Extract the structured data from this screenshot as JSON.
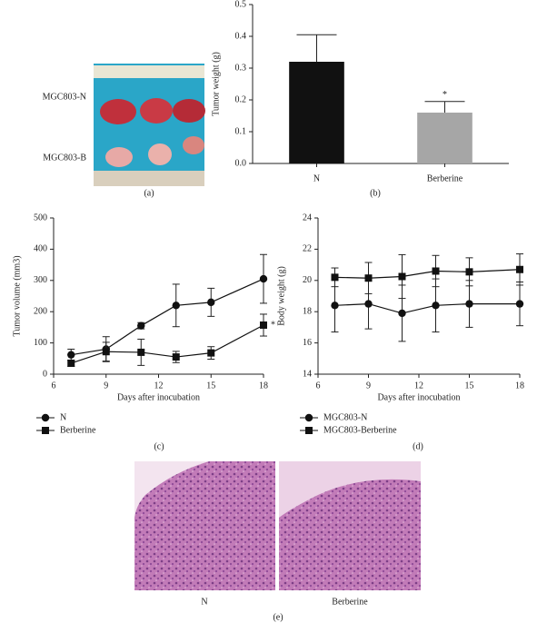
{
  "photo": {
    "labels": [
      "MGC803-N",
      "MGC803-B"
    ],
    "caption": "(a)"
  },
  "chart_data": [
    {
      "type": "bar",
      "caption": "(b)",
      "ylabel": "Tumor weight (g)",
      "categories": [
        "N",
        "Berberine"
      ],
      "values": [
        0.32,
        0.16
      ],
      "errors": [
        0.085,
        0.035
      ],
      "colors": [
        "#111111",
        "#a6a6a6"
      ],
      "ylim": [
        0,
        0.5
      ],
      "yticks": [
        {
          "value": 0,
          "label": "0.0"
        },
        0.1,
        0.2,
        0.3,
        0.4,
        0.5
      ],
      "annotation": "*"
    },
    {
      "type": "line",
      "caption": "(c)",
      "xlabel": "Days after inocubation",
      "ylabel": "Tumor volume (mm3)",
      "x": [
        7,
        9,
        11,
        13,
        15,
        18
      ],
      "series": [
        {
          "name": "N",
          "color": "#111111",
          "marker": "circle",
          "values": [
            62,
            80,
            155,
            220,
            230,
            305
          ],
          "errors": [
            18,
            40,
            10,
            68,
            45,
            78
          ]
        },
        {
          "name": "Berberine",
          "color": "#111111",
          "marker": "square",
          "values": [
            35,
            72,
            70,
            55,
            68,
            157
          ],
          "errors": [
            10,
            30,
            42,
            18,
            20,
            35
          ]
        }
      ],
      "xlim": [
        6,
        18
      ],
      "xticks": [
        6,
        9,
        12,
        15,
        18
      ],
      "ylim": [
        0,
        500
      ],
      "yticks": [
        0,
        100,
        200,
        300,
        400,
        500
      ],
      "annotation": "*"
    },
    {
      "type": "line",
      "caption": "(d)",
      "xlabel": "Days after inocubation",
      "ylabel": "Body weight (g)",
      "x": [
        7,
        9,
        11,
        13,
        15,
        18
      ],
      "series": [
        {
          "name": "MGC803-N",
          "color": "#111111",
          "marker": "circle",
          "values": [
            18.4,
            18.5,
            17.9,
            18.4,
            18.5,
            18.5
          ],
          "errors": [
            1.7,
            1.6,
            1.8,
            1.7,
            1.5,
            1.4
          ]
        },
        {
          "name": "MGC803-Berberine",
          "color": "#111111",
          "marker": "square",
          "values": [
            20.2,
            20.15,
            20.25,
            20.6,
            20.55,
            20.7
          ],
          "errors": [
            0.6,
            1.0,
            1.4,
            1.0,
            0.9,
            1.0
          ]
        }
      ],
      "xlim": [
        6,
        18
      ],
      "xticks": [
        6,
        9,
        12,
        15,
        18
      ],
      "ylim": [
        14,
        24
      ],
      "yticks": [
        14,
        16,
        18,
        20,
        22,
        24
      ]
    }
  ],
  "histology": {
    "labels": [
      "N",
      "Berberine"
    ],
    "caption": "(e)"
  }
}
